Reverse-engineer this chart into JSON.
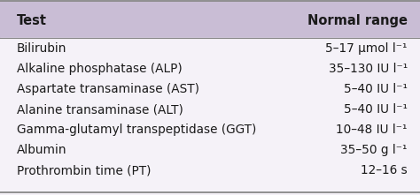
{
  "header": [
    "Test",
    "Normal range"
  ],
  "rows": [
    [
      "Bilirubin",
      "5–17 μmol l⁻¹"
    ],
    [
      "Alkaline phosphatase (ALP)",
      "35–130 IU l⁻¹"
    ],
    [
      "Aspartate transaminase (AST)",
      "5–40 IU l⁻¹"
    ],
    [
      "Alanine transaminase (ALT)",
      "5–40 IU l⁻¹"
    ],
    [
      "Gamma-glutamyl transpeptidase (GGT)",
      "10–48 IU l⁻¹"
    ],
    [
      "Albumin",
      "35–50 g l⁻¹"
    ],
    [
      "Prothrombin time (PT)",
      "12–16 s"
    ]
  ],
  "header_bg": "#c9bdd5",
  "table_bg": "#f5f2f8",
  "border_color": "#888888",
  "text_color": "#1a1a1a",
  "header_fontsize": 10.5,
  "row_fontsize": 9.8,
  "figsize": [
    4.74,
    2.21
  ],
  "dpi": 100
}
